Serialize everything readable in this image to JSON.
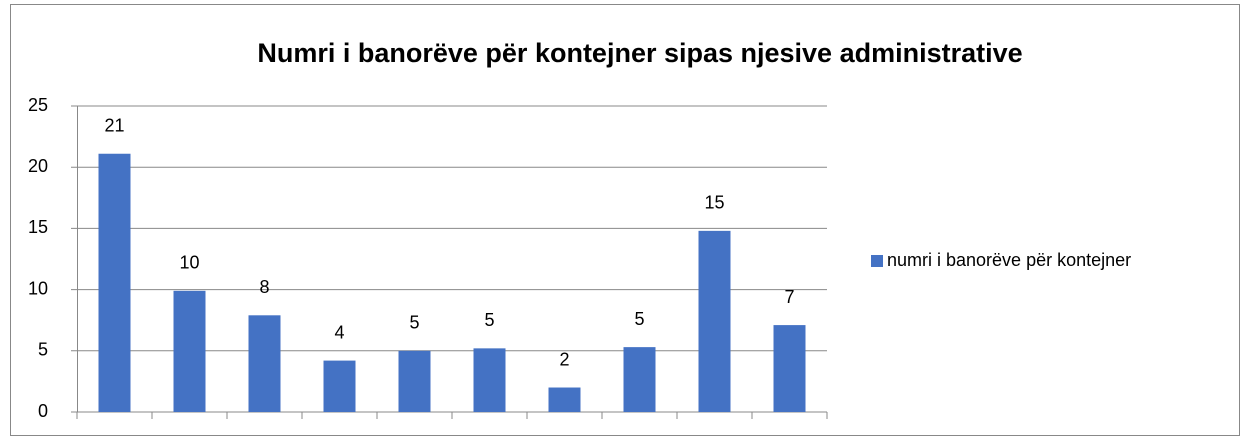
{
  "chart_data": {
    "type": "bar",
    "title": "Numri i banorëve për kontejner sipas njesive administrative",
    "categories": [
      null,
      null,
      null,
      null,
      null,
      null,
      null,
      null,
      null,
      null
    ],
    "series": [
      {
        "name": "numri i banorëve për kontejner",
        "color": "#4472c4",
        "values": [
          21.1,
          9.9,
          7.9,
          4.2,
          5.0,
          5.2,
          2.0,
          5.3,
          14.8,
          7.1
        ],
        "value_labels": [
          "21",
          "10",
          "8",
          "4",
          "5",
          "5",
          "2",
          "5",
          "15",
          "7"
        ]
      }
    ],
    "ylim": [
      0,
      25
    ],
    "yticks": [
      0,
      5,
      10,
      15,
      20,
      25
    ],
    "grid": true,
    "legend": "right"
  }
}
